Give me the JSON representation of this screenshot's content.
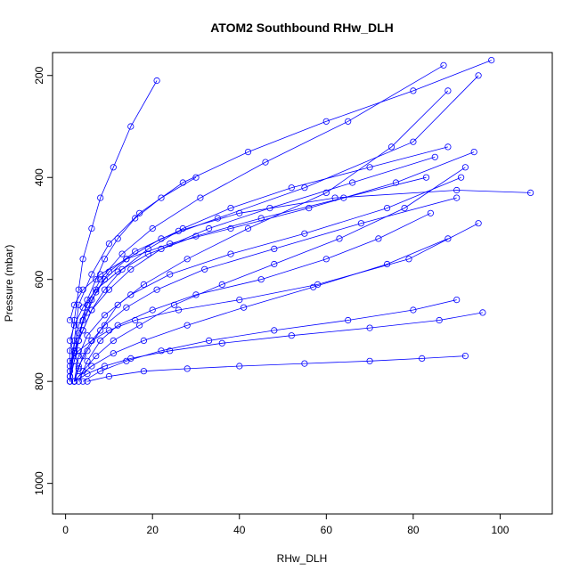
{
  "chart_data": {
    "type": "line",
    "title": "ATOM2 Southbound RHw_DLH",
    "xlabel": "RHw_DLH",
    "ylabel": "Pressure (mbar)",
    "xlim": [
      -3,
      112
    ],
    "ylim": [
      1060,
      155
    ],
    "y_reversed": true,
    "x_ticks": [
      0,
      20,
      40,
      60,
      80,
      100
    ],
    "y_ticks": [
      200,
      400,
      600,
      800,
      1000
    ],
    "marker": "open-circle",
    "grid": false,
    "legend": "none",
    "series": [
      {
        "color": "#0000ff",
        "profiles": [
          {
            "x": [
              1,
              2,
              3,
              4,
              6,
              9,
              14,
              22,
              35,
              55,
              80,
              95
            ],
            "y": [
              800,
              760,
              720,
              680,
              640,
              600,
              560,
              520,
              480,
              420,
              330,
              200
            ]
          },
          {
            "x": [
              2,
              3,
              5,
              8,
              12,
              18,
              28,
              42,
              60,
              75,
              88
            ],
            "y": [
              800,
              770,
              740,
              700,
              650,
              610,
              560,
              500,
              430,
              340,
              230
            ]
          },
          {
            "x": [
              1,
              2,
              3,
              5,
              7,
              10,
              16,
              26,
              40,
              62,
              90,
              107
            ],
            "y": [
              790,
              745,
              705,
              665,
              625,
              585,
              545,
              505,
              470,
              440,
              425,
              430
            ]
          },
          {
            "x": [
              3,
              5,
              8,
              12,
              20,
              30,
              45,
              60,
              72,
              84
            ],
            "y": [
              800,
              760,
              720,
              690,
              660,
              630,
              600,
              560,
              520,
              470
            ]
          },
          {
            "x": [
              1,
              1,
              2,
              3,
              4,
              6,
              8,
              11,
              15,
              21
            ],
            "y": [
              800,
              740,
              680,
              620,
              560,
              500,
              440,
              380,
              300,
              210
            ]
          },
          {
            "x": [
              2,
              4,
              7,
              11,
              17,
              25,
              36,
              48,
              63,
              78,
              92
            ],
            "y": [
              800,
              780,
              750,
              720,
              690,
              650,
              610,
              570,
              520,
              460,
              380
            ]
          },
          {
            "x": [
              1,
              2,
              4,
              6,
              10,
              15,
              22,
              33,
              47,
              66,
              85
            ],
            "y": [
              780,
              740,
              700,
              660,
              620,
              580,
              540,
              500,
              460,
              410,
              360
            ]
          },
          {
            "x": [
              4,
              8,
              14,
              22,
              33,
              48,
              65,
              80,
              90
            ],
            "y": [
              800,
              780,
              760,
              740,
              720,
              700,
              680,
              660,
              640
            ]
          },
          {
            "x": [
              1,
              2,
              3,
              5,
              8,
              13,
              20,
              31,
              46,
              65,
              87
            ],
            "y": [
              770,
              730,
              690,
              650,
              600,
              550,
              500,
              440,
              370,
              290,
              180
            ]
          },
          {
            "x": [
              2,
              3,
              5,
              9,
              15,
              24,
              38,
              55,
              74,
              91
            ],
            "y": [
              800,
              750,
              710,
              670,
              630,
              590,
              550,
              510,
              460,
              400
            ]
          },
          {
            "x": [
              1,
              3,
              6,
              10,
              16,
              26,
              40,
              58,
              79,
              95
            ],
            "y": [
              760,
              740,
              720,
              700,
              680,
              660,
              640,
              610,
              560,
              490
            ]
          },
          {
            "x": [
              1,
              2,
              3,
              4,
              5,
              7,
              9,
              12,
              16,
              22,
              30
            ],
            "y": [
              790,
              760,
              720,
              680,
              640,
              600,
              560,
              520,
              480,
              440,
              400
            ]
          },
          {
            "x": [
              5,
              10,
              18,
              28,
              40,
              55,
              70,
              82,
              92
            ],
            "y": [
              800,
              790,
              780,
              775,
              770,
              765,
              760,
              755,
              750
            ]
          },
          {
            "x": [
              2,
              4,
              6,
              9,
              13,
              19,
              27,
              38,
              52,
              70,
              88
            ],
            "y": [
              740,
              700,
              660,
              620,
              580,
              540,
              500,
              460,
              420,
              380,
              340
            ]
          },
          {
            "x": [
              1,
              2,
              3,
              6,
              10,
              17,
              27,
              42,
              60,
              80,
              98
            ],
            "y": [
              800,
              720,
              650,
              590,
              530,
              470,
              410,
              350,
              290,
              230,
              170
            ]
          },
          {
            "x": [
              3,
              6,
              11,
              18,
              28,
              41,
              57,
              74,
              88
            ],
            "y": [
              790,
              770,
              745,
              720,
              690,
              655,
              615,
              570,
              520
            ]
          },
          {
            "x": [
              1,
              2,
              4,
              7,
              12,
              19,
              30,
              45,
              64,
              83
            ],
            "y": [
              720,
              690,
              655,
              620,
              585,
              550,
              515,
              480,
              440,
              400
            ]
          },
          {
            "x": [
              2,
              3,
              4,
              6,
              9,
              14,
              21,
              32,
              48,
              68,
              90
            ],
            "y": [
              800,
              775,
              750,
              720,
              690,
              655,
              620,
              580,
              540,
              490,
              440
            ]
          },
          {
            "x": [
              1,
              2,
              4,
              8,
              14,
              24,
              38,
              56,
              76,
              94
            ],
            "y": [
              680,
              650,
              620,
              590,
              560,
              530,
              500,
              460,
              410,
              350
            ]
          },
          {
            "x": [
              2,
              5,
              9,
              15,
              24,
              36,
              52,
              70,
              86,
              96
            ],
            "y": [
              800,
              785,
              770,
              755,
              740,
              725,
              710,
              695,
              680,
              665
            ]
          }
        ]
      }
    ]
  }
}
